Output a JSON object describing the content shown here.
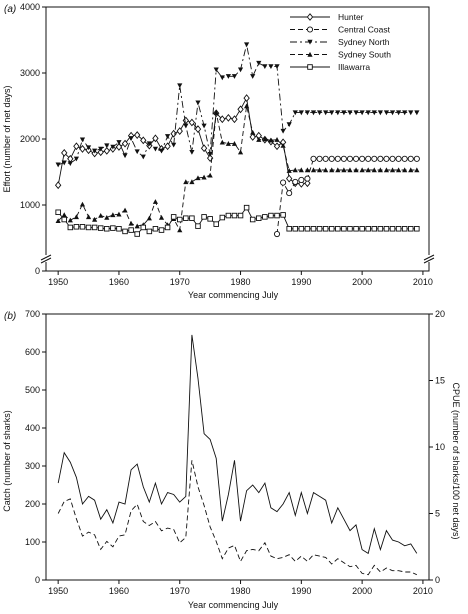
{
  "chart_data": [
    {
      "panel_label": "(a)",
      "type": "line",
      "xlabel": "Year commencing July",
      "ylabel": "Effort (number of net days)",
      "xlim": [
        1948,
        2011
      ],
      "ylim": [
        0,
        4000
      ],
      "x_ticks": [
        "1950",
        "1960",
        "1970",
        "1980",
        "1990",
        "2000",
        "2010"
      ],
      "y_ticks": [
        "0",
        "1000",
        "2000",
        "3000",
        "4000"
      ],
      "legend_position": "top-right",
      "axis_break": true,
      "series": [
        {
          "name": "Hunter",
          "marker": "diamond-open",
          "dash": "solid",
          "x": [
            1950,
            1951,
            1952,
            1953,
            1954,
            1955,
            1956,
            1957,
            1958,
            1959,
            1960,
            1961,
            1962,
            1963,
            1964,
            1965,
            1966,
            1967,
            1968,
            1969,
            1970,
            1971,
            1972,
            1973,
            1974,
            1975,
            1976,
            1977,
            1978,
            1979,
            1980,
            1981,
            1982,
            1983,
            1984,
            1985,
            1986,
            1987,
            1988,
            1989,
            1990,
            1991
          ],
          "y": [
            1300,
            1790,
            1700,
            1890,
            1850,
            1830,
            1780,
            1800,
            1820,
            1850,
            1880,
            1930,
            2050,
            2060,
            1980,
            1900,
            2010,
            1850,
            1890,
            2080,
            2120,
            2280,
            2250,
            2150,
            1860,
            1710,
            2390,
            2300,
            2320,
            2300,
            2450,
            2620,
            2030,
            2050,
            1990,
            1960,
            1890,
            1950,
            1400,
            1330,
            1320,
            1330
          ]
        },
        {
          "name": "Central Coast",
          "marker": "circle-open",
          "dash": "dashed",
          "x": [
            1986,
            1987,
            1988,
            1989,
            1990,
            1991,
            1992,
            1993,
            1994,
            1995,
            1996,
            1997,
            1998,
            1999,
            2000,
            2001,
            2002,
            2003,
            2004,
            2005,
            2006,
            2007,
            2008,
            2009
          ],
          "y": [
            560,
            1340,
            1180,
            1350,
            1380,
            1400,
            1700,
            1700,
            1700,
            1700,
            1700,
            1700,
            1700,
            1700,
            1700,
            1700,
            1700,
            1700,
            1700,
            1700,
            1700,
            1700,
            1700,
            1700
          ]
        },
        {
          "name": "Sydney North",
          "marker": "triangle-down-filled",
          "dash": "dash-dot",
          "x": [
            1950,
            1951,
            1952,
            1953,
            1954,
            1955,
            1956,
            1957,
            1958,
            1959,
            1960,
            1961,
            1962,
            1963,
            1964,
            1965,
            1966,
            1967,
            1968,
            1969,
            1970,
            1971,
            1972,
            1973,
            1974,
            1975,
            1976,
            1977,
            1978,
            1979,
            1980,
            1981,
            1982,
            1983,
            1984,
            1985,
            1986,
            1987,
            1988,
            1989,
            1990,
            1991,
            1992,
            1993,
            1994,
            1995,
            1996,
            1997,
            1998,
            1999,
            2000,
            2001,
            2002,
            2003,
            2004,
            2005,
            2006,
            2007,
            2008,
            2009
          ],
          "y": [
            1610,
            1640,
            1630,
            1700,
            1990,
            1870,
            1820,
            1850,
            1900,
            1880,
            1950,
            1750,
            2010,
            1810,
            1730,
            1930,
            1850,
            1820,
            2040,
            1910,
            2810,
            2200,
            1800,
            2550,
            2200,
            1770,
            3050,
            2930,
            2950,
            2950,
            3050,
            3430,
            2950,
            3150,
            3100,
            3100,
            3100,
            2120,
            2220,
            2400,
            2400,
            2400,
            2400,
            2400,
            2400,
            2400,
            2400,
            2400,
            2400,
            2400,
            2400,
            2400,
            2400,
            2400,
            2400,
            2400,
            2400,
            2400,
            2400,
            2400
          ]
        },
        {
          "name": "Sydney South",
          "marker": "triangle-up-filled",
          "dash": "dashed",
          "x": [
            1950,
            1951,
            1952,
            1953,
            1954,
            1955,
            1956,
            1957,
            1958,
            1959,
            1960,
            1961,
            1962,
            1963,
            1964,
            1965,
            1966,
            1967,
            1968,
            1969,
            1970,
            1971,
            1972,
            1973,
            1974,
            1975,
            1976,
            1977,
            1978,
            1979,
            1980,
            1981,
            1982,
            1983,
            1984,
            1985,
            1986,
            1987,
            1988,
            1989,
            1990,
            1991,
            1992,
            1993,
            1994,
            1995,
            1996,
            1997,
            1998,
            1999,
            2000,
            2001,
            2002,
            2003,
            2004,
            2005,
            2006,
            2007,
            2008,
            2009
          ],
          "y": [
            760,
            850,
            770,
            820,
            1010,
            820,
            780,
            840,
            810,
            850,
            860,
            920,
            720,
            680,
            700,
            800,
            1050,
            810,
            700,
            790,
            620,
            1350,
            1350,
            1410,
            1420,
            1450,
            2400,
            1950,
            1930,
            1930,
            1800,
            2500,
            2100,
            1990,
            2000,
            1980,
            1990,
            1900,
            1520,
            1530,
            1530,
            1530,
            1530,
            1530,
            1530,
            1530,
            1530,
            1530,
            1530,
            1530,
            1530,
            1530,
            1530,
            1530,
            1530,
            1530,
            1530,
            1530,
            1530,
            1530
          ]
        },
        {
          "name": "Illawarra",
          "marker": "square-open",
          "dash": "solid",
          "x": [
            1950,
            1951,
            1952,
            1953,
            1954,
            1955,
            1956,
            1957,
            1958,
            1959,
            1960,
            1961,
            1962,
            1963,
            1964,
            1965,
            1966,
            1967,
            1968,
            1969,
            1970,
            1971,
            1972,
            1973,
            1974,
            1975,
            1976,
            1977,
            1978,
            1979,
            1980,
            1981,
            1982,
            1983,
            1984,
            1985,
            1986,
            1987,
            1988,
            1989,
            1990,
            1991,
            1992,
            1993,
            1994,
            1995,
            1996,
            1997,
            1998,
            1999,
            2000,
            2001,
            2002,
            2003,
            2004,
            2005,
            2006,
            2007,
            2008,
            2009
          ],
          "y": [
            890,
            780,
            660,
            670,
            670,
            660,
            660,
            650,
            640,
            650,
            640,
            600,
            620,
            560,
            660,
            600,
            640,
            620,
            660,
            820,
            780,
            800,
            800,
            680,
            820,
            790,
            710,
            810,
            840,
            840,
            840,
            960,
            780,
            800,
            820,
            840,
            840,
            850,
            640,
            640,
            640,
            640,
            640,
            640,
            640,
            640,
            640,
            640,
            640,
            640,
            640,
            640,
            640,
            640,
            640,
            640,
            640,
            640,
            640,
            640
          ]
        }
      ]
    },
    {
      "panel_label": "(b)",
      "type": "line",
      "xlabel": "Year commencing July",
      "ylabel": "Catch (number of sharks)",
      "ylabel_right": "CPUE (number of sharks/100 net days)",
      "xlim": [
        1948,
        2011
      ],
      "ylim": [
        0,
        700
      ],
      "ylim_right": [
        0,
        20
      ],
      "x_ticks": [
        "1950",
        "1960",
        "1970",
        "1980",
        "1990",
        "2000",
        "2010"
      ],
      "y_ticks": [
        "0",
        "100",
        "200",
        "300",
        "400",
        "500",
        "600",
        "700"
      ],
      "y_ticks_right": [
        "0",
        "5",
        "10",
        "15",
        "20"
      ],
      "series": [
        {
          "axis": "left",
          "dash": "solid",
          "x": [
            1950,
            1951,
            1952,
            1953,
            1954,
            1955,
            1956,
            1957,
            1958,
            1959,
            1960,
            1961,
            1962,
            1963,
            1964,
            1965,
            1966,
            1967,
            1968,
            1969,
            1970,
            1971,
            1972,
            1973,
            1974,
            1975,
            1976,
            1977,
            1978,
            1979,
            1980,
            1981,
            1982,
            1983,
            1984,
            1985,
            1986,
            1987,
            1988,
            1989,
            1990,
            1991,
            1992,
            1993,
            1994,
            1995,
            1996,
            1997,
            1998,
            1999,
            2000,
            2001,
            2002,
            2003,
            2004,
            2005,
            2006,
            2007,
            2008,
            2009
          ],
          "y": [
            255,
            335,
            310,
            270,
            200,
            220,
            210,
            160,
            185,
            150,
            205,
            200,
            290,
            305,
            245,
            205,
            255,
            200,
            230,
            225,
            205,
            220,
            645,
            530,
            385,
            370,
            320,
            155,
            225,
            315,
            155,
            235,
            250,
            230,
            255,
            190,
            180,
            200,
            230,
            170,
            230,
            175,
            230,
            220,
            210,
            150,
            190,
            160,
            130,
            145,
            80,
            70,
            135,
            80,
            130,
            105,
            100,
            90,
            95,
            70
          ]
        },
        {
          "axis": "right",
          "dash": "dashed",
          "x": [
            1950,
            1951,
            1952,
            1953,
            1954,
            1955,
            1956,
            1957,
            1958,
            1959,
            1960,
            1961,
            1962,
            1963,
            1964,
            1965,
            1966,
            1967,
            1968,
            1969,
            1970,
            1971,
            1972,
            1973,
            1974,
            1975,
            1976,
            1977,
            1978,
            1979,
            1980,
            1981,
            1982,
            1983,
            1984,
            1985,
            1986,
            1987,
            1988,
            1989,
            1990,
            1991,
            1992,
            1993,
            1994,
            1995,
            1996,
            1997,
            1998,
            1999,
            2000,
            2001,
            2002,
            2003,
            2004,
            2005,
            2006,
            2007,
            2008,
            2009
          ],
          "y": [
            5.0,
            5.9,
            6.1,
            4.6,
            3.3,
            3.6,
            3.4,
            2.3,
            2.9,
            2.5,
            3.3,
            3.4,
            5.2,
            5.7,
            4.4,
            4.1,
            4.4,
            3.7,
            3.9,
            3.8,
            2.8,
            3.2,
            9.0,
            7.0,
            5.6,
            4.0,
            2.9,
            1.6,
            2.4,
            2.6,
            1.4,
            2.2,
            2.3,
            2.2,
            2.8,
            1.8,
            1.6,
            1.7,
            1.9,
            1.4,
            1.8,
            1.4,
            1.9,
            1.8,
            1.7,
            1.2,
            1.6,
            1.3,
            1.0,
            1.1,
            0.5,
            0.4,
            1.1,
            0.6,
            0.9,
            0.7,
            0.7,
            0.6,
            0.6,
            0.4
          ]
        }
      ]
    }
  ]
}
